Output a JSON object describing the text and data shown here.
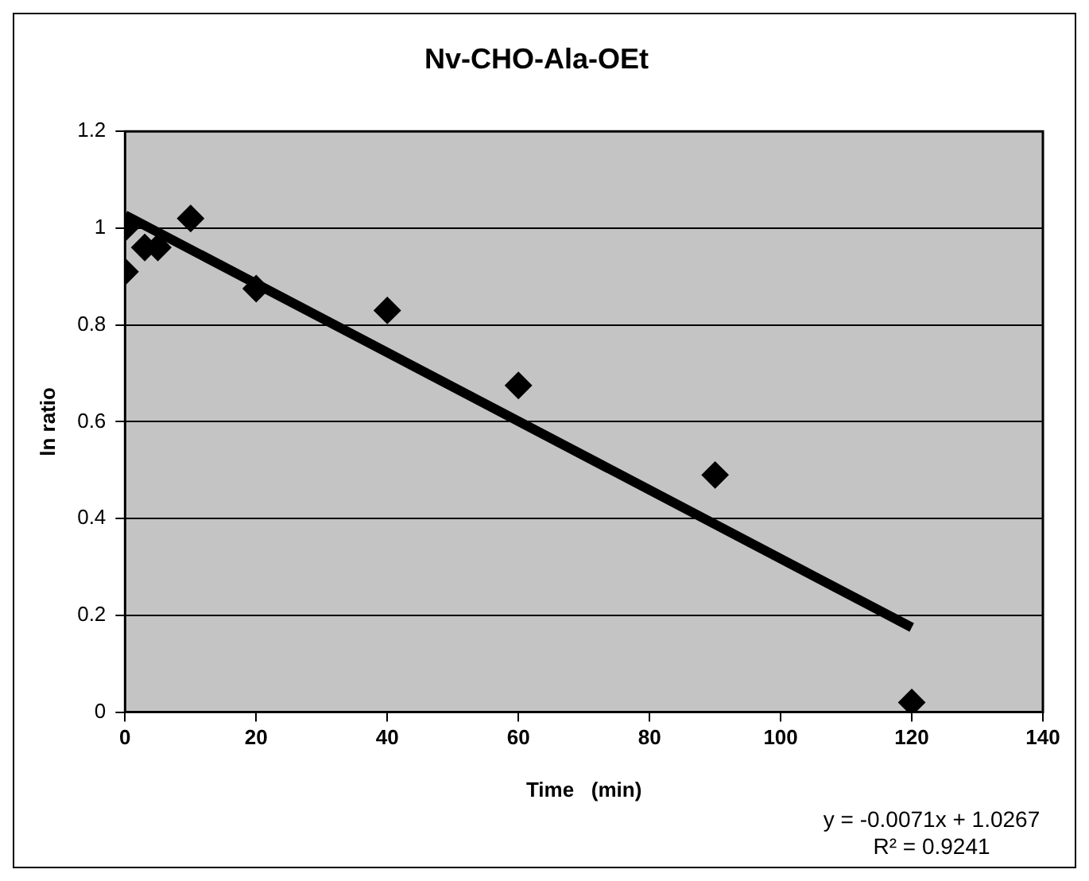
{
  "chart_data": {
    "type": "scatter",
    "title": "Nv-CHO-Ala-OEt",
    "xlabel": "Time   (min)",
    "ylabel": "ln ratio",
    "series": [
      {
        "color": "#000000",
        "marker": "diamond",
        "x": [
          0,
          0,
          2,
          3,
          5,
          10,
          20,
          40,
          60,
          90,
          120
        ],
        "values": [
          0.91,
          1.0,
          null,
          0.96,
          0.96,
          1.02,
          0.875,
          0.83,
          0.675,
          0.49,
          0.02
        ]
      },
      {
        "type": "line",
        "color": "#000000",
        "marker": "none",
        "line_style": "solid",
        "x": [
          0,
          120
        ],
        "values": [
          1.027,
          0.175
        ]
      }
    ],
    "xlim": [
      0,
      140
    ],
    "xticks": [
      0,
      20,
      40,
      60,
      80,
      100,
      120,
      140
    ],
    "ylim": [
      0,
      1.2
    ],
    "yticks": [
      0,
      0.2,
      0.4,
      0.6,
      0.8,
      1,
      1.2
    ],
    "grid": "y",
    "legend": false,
    "annotations": [
      "y = -0.0071x + 1.0267",
      "R² = 0.9241"
    ]
  }
}
